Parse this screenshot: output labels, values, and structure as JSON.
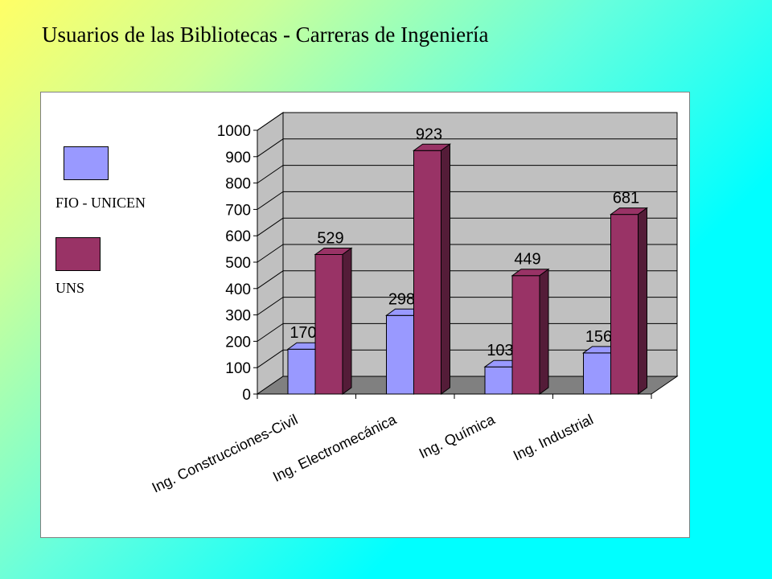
{
  "slide": {
    "title": "Usuarios  de las Bibliotecas - Carreras de Ingeniería"
  },
  "colors": {
    "series1": "#9999ff",
    "series2": "#993366",
    "wall": "#c0c0c0",
    "floor": "#808080"
  },
  "chart_data": {
    "type": "bar",
    "three_d": true,
    "categories": [
      "Ing. Construcciones-Civil",
      "Ing. Electromecánica",
      "Ing. Química",
      "Ing. Industrial"
    ],
    "series": [
      {
        "name": "FIO - UNICEN",
        "values": [
          170,
          298,
          103,
          156
        ]
      },
      {
        "name": "UNS",
        "values": [
          529,
          923,
          449,
          681
        ]
      }
    ],
    "ylim": [
      0,
      1000
    ],
    "yticks": [
      0,
      100,
      200,
      300,
      400,
      500,
      600,
      700,
      800,
      900,
      1000
    ],
    "grid": true,
    "legend": "left",
    "data_labels": true
  }
}
